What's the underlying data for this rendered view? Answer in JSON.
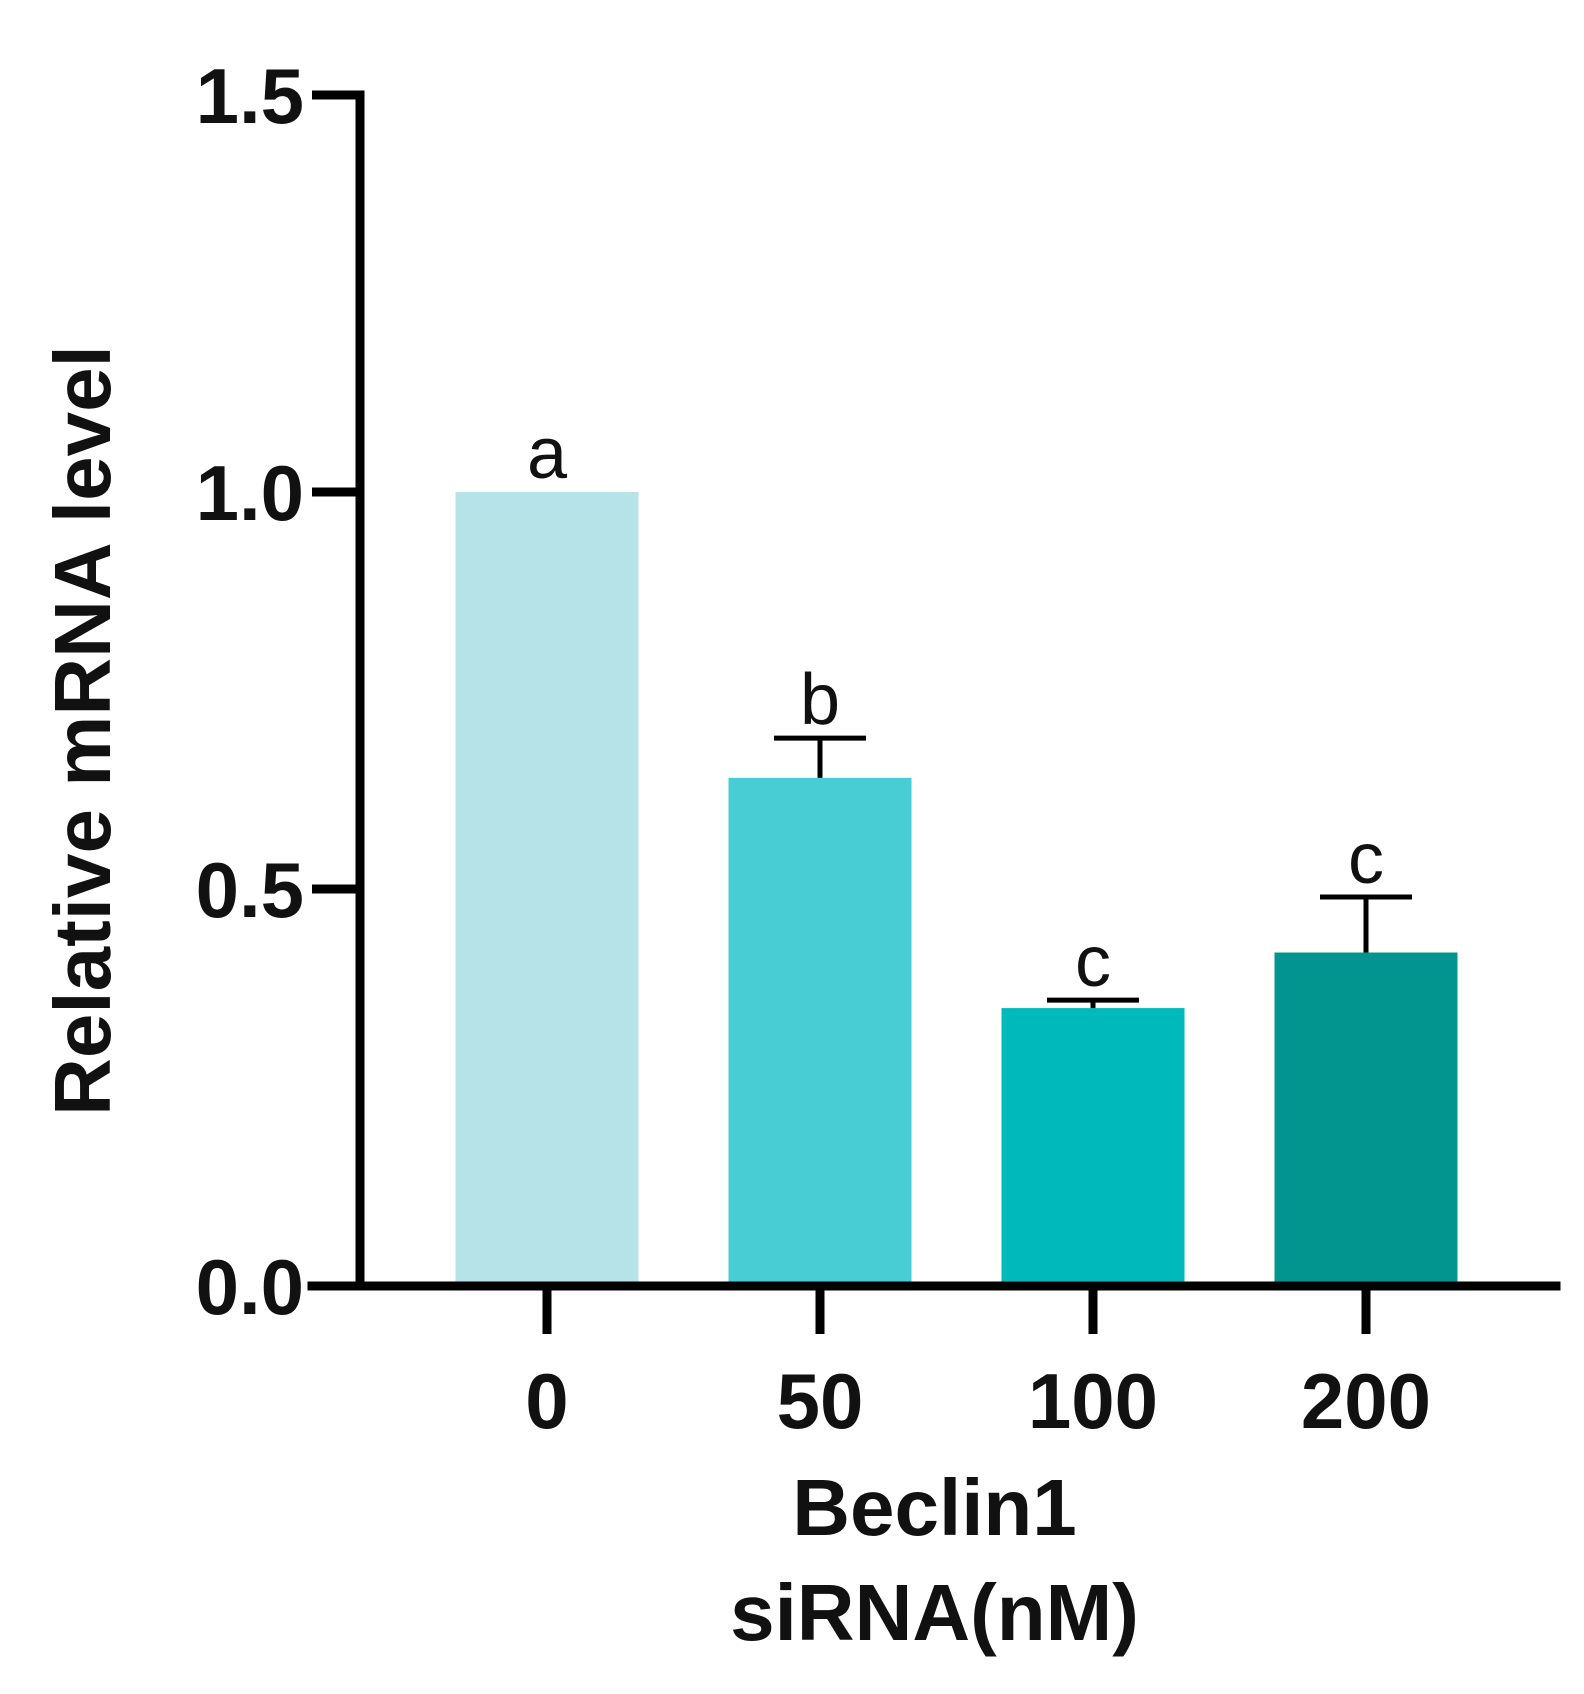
{
  "chart_data": {
    "type": "bar",
    "title": "",
    "xlabel_lines": [
      "Beclin1",
      "siRNA(nM)"
    ],
    "ylabel": "Relative mRNA level",
    "categories": [
      "0",
      "50",
      "100",
      "200"
    ],
    "values": [
      1.0,
      0.64,
      0.35,
      0.42
    ],
    "errors": [
      0.0,
      0.05,
      0.01,
      0.07
    ],
    "significance_labels": [
      "a",
      "b",
      "c",
      "c"
    ],
    "bar_colors": [
      "#b5e3e8",
      "#47cdd3",
      "#00b9bb",
      "#029590"
    ],
    "ylim": [
      0,
      1.5
    ],
    "yticks": [
      "0.0",
      "0.5",
      "1.0",
      "1.5"
    ],
    "grid": false,
    "legend": "none"
  }
}
